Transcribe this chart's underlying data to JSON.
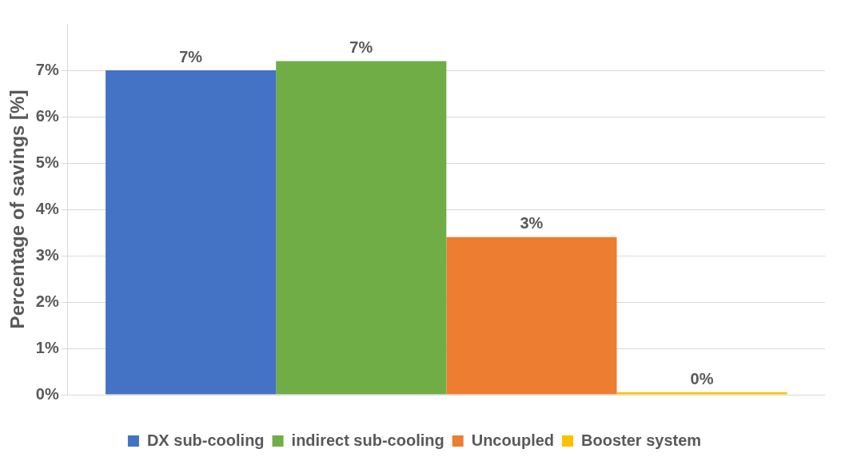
{
  "chart_data": {
    "type": "bar",
    "ylabel": "Percentage of savings [%]",
    "categories": [
      null
    ],
    "series": [
      {
        "name": "DX sub-cooling",
        "color": "#4472c4",
        "values": [
          7.0
        ],
        "value_labels": [
          "7%"
        ]
      },
      {
        "name": "indirect sub-cooling",
        "color": "#70ad47",
        "values": [
          7.2
        ],
        "value_labels": [
          "7%"
        ]
      },
      {
        "name": "Uncoupled",
        "color": "#ed7d31",
        "values": [
          3.4
        ],
        "value_labels": [
          "3%"
        ]
      },
      {
        "name": "Booster system",
        "color": "#ffc000",
        "values": [
          0.05
        ],
        "value_labels": [
          "0%"
        ]
      }
    ],
    "ylim": [
      0,
      8
    ],
    "yticks": [
      {
        "value": 0,
        "label": "0%"
      },
      {
        "value": 1,
        "label": "1%"
      },
      {
        "value": 2,
        "label": "2%"
      },
      {
        "value": 3,
        "label": "3%"
      },
      {
        "value": 4,
        "label": "4%"
      },
      {
        "value": 5,
        "label": "5%"
      },
      {
        "value": 6,
        "label": "6%"
      },
      {
        "value": 7,
        "label": "7%"
      }
    ],
    "grid": "y",
    "legend": "bottom"
  }
}
